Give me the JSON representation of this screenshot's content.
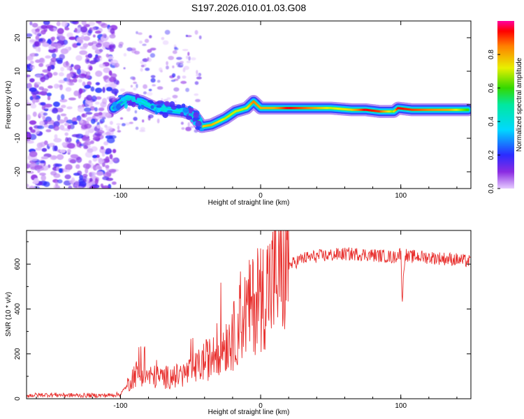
{
  "title": "S197.2026.010.01.03.G08",
  "chart_data": [
    {
      "type": "heatmap",
      "xlabel": "Height of straight line (km)",
      "ylabel": "Frequency (Hz)",
      "xlim": [
        -167,
        150
      ],
      "ylim": [
        -25,
        25
      ],
      "xticks": [
        "-100",
        "0",
        "100"
      ],
      "yticks": [
        "20",
        "10",
        "0",
        "-10",
        "-20"
      ],
      "ridge": {
        "x": [
          -105,
          -95,
          -85,
          -75,
          -65,
          -55,
          -48,
          -42,
          -35,
          -25,
          -18,
          -10,
          -5,
          0,
          10,
          20,
          35,
          50,
          65,
          75,
          85,
          95,
          98,
          108,
          120,
          135,
          148
        ],
        "y": [
          -1,
          2,
          1,
          -1,
          -1.5,
          -2,
          -3,
          -6.5,
          -6,
          -4,
          -2,
          -1,
          1,
          -1,
          -1,
          -1,
          -1,
          -1,
          -1.5,
          -1.5,
          -2,
          -2,
          -1,
          -1.5,
          -1.5,
          -1.5,
          -1.5
        ],
        "amplitude": [
          0.25,
          0.3,
          0.35,
          0.4,
          0.35,
          0.35,
          0.3,
          0.75,
          0.8,
          0.7,
          0.7,
          0.7,
          0.85,
          0.8,
          0.8,
          0.95,
          0.85,
          0.7,
          0.75,
          0.95,
          0.9,
          0.65,
          0.95,
          0.9,
          0.85,
          0.8,
          0.6
        ]
      },
      "colorbar": {
        "label": "Normalized spectral amplitude",
        "ticks": [
          "0.0",
          "0.2",
          "0.4",
          "0.6",
          "0.8"
        ],
        "range": [
          0,
          1
        ]
      }
    },
    {
      "type": "line",
      "xlabel": "Height of straight line (km)",
      "ylabel": "SNR (10 * v/v)",
      "xlim": [
        -167,
        150
      ],
      "ylim": [
        0,
        750
      ],
      "xticks": [
        "-100",
        "0",
        "100"
      ],
      "yticks": [
        "0",
        "200",
        "400",
        "600"
      ],
      "series": [
        {
          "name": "SNR",
          "color": "#e8302e",
          "x": [
            -167,
            -150,
            -130,
            -110,
            -100,
            -95,
            -90,
            -85,
            -80,
            -70,
            -60,
            -50,
            -45,
            -40,
            -35,
            -30,
            -25,
            -20,
            -15,
            -10,
            -5,
            0,
            5,
            10,
            15,
            20,
            25,
            30,
            40,
            50,
            60,
            70,
            80,
            90,
            95,
            100,
            101,
            103,
            105,
            110,
            120,
            130,
            140,
            150
          ],
          "y": [
            15,
            18,
            15,
            15,
            20,
            60,
            110,
            120,
            100,
            95,
            100,
            120,
            140,
            170,
            180,
            230,
            250,
            270,
            340,
            390,
            420,
            450,
            500,
            530,
            560,
            590,
            610,
            625,
            635,
            640,
            645,
            645,
            640,
            635,
            630,
            650,
            440,
            650,
            630,
            635,
            630,
            625,
            620,
            610
          ]
        }
      ]
    }
  ]
}
